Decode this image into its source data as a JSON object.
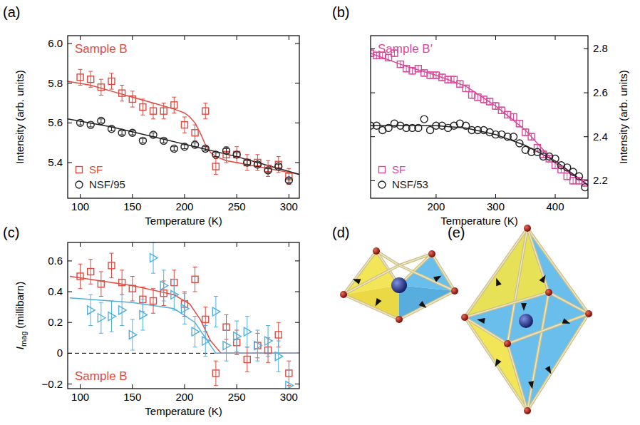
{
  "chart_data": [
    {
      "type": "scatter",
      "label": "(a)",
      "annotations": [
        {
          "text": "Sample B",
          "color": "#e0493f"
        }
      ],
      "x_label": "Temperature (K)",
      "y_label": "Intensity (arb. units)",
      "xlim": [
        88,
        310
      ],
      "ylim": [
        5.22,
        6.04
      ],
      "xticks": [
        100,
        150,
        200,
        250,
        300
      ],
      "yticks": [
        5.4,
        5.6,
        5.8,
        {
          "value": 6,
          "label": "6.0"
        }
      ],
      "legend": "lower left",
      "series": [
        {
          "name": "SF",
          "type": "scatter",
          "marker": "square",
          "color": "#e0493f",
          "x": [
            100,
            110,
            120,
            130,
            140,
            150,
            160,
            170,
            180,
            190,
            200,
            210,
            220,
            230,
            240,
            250,
            260,
            270,
            280,
            290,
            300
          ],
          "values": [
            5.83,
            5.82,
            5.78,
            5.81,
            5.75,
            5.72,
            5.68,
            5.66,
            5.66,
            5.69,
            5.59,
            5.55,
            5.66,
            5.38,
            5.44,
            5.44,
            5.4,
            5.4,
            5.37,
            5.39,
            5.33
          ],
          "errors": [
            0.04,
            0.04,
            0.04,
            0.04,
            0.04,
            0.04,
            0.04,
            0.04,
            0.04,
            0.04,
            0.04,
            0.04,
            0.04,
            0.04,
            0.04,
            0.04,
            0.04,
            0.04,
            0.04,
            0.04,
            0.04
          ]
        },
        {
          "name": "NSF/95",
          "type": "scatter",
          "marker": "circle",
          "color": "#222222",
          "x": [
            100,
            110,
            120,
            130,
            140,
            150,
            160,
            170,
            180,
            190,
            200,
            210,
            220,
            230,
            240,
            250,
            260,
            270,
            280,
            290,
            300
          ],
          "values": [
            5.6,
            5.59,
            5.61,
            5.57,
            5.55,
            5.55,
            5.51,
            5.54,
            5.51,
            5.47,
            5.48,
            5.49,
            5.47,
            5.44,
            5.46,
            5.44,
            5.4,
            5.39,
            5.36,
            5.38,
            5.31
          ],
          "errors": [
            0.01,
            0.01,
            0.01,
            0.01,
            0.01,
            0.01,
            0.01,
            0.01,
            0.01,
            0.01,
            0.01,
            0.01,
            0.01,
            0.01,
            0.01,
            0.01,
            0.01,
            0.01,
            0.01,
            0.01,
            0.01
          ]
        },
        {
          "type": "line",
          "color": "#e0493f",
          "x": [
            88,
            110,
            130,
            150,
            170,
            190,
            200,
            205,
            210,
            215,
            220,
            225,
            230,
            240,
            260,
            280,
            300,
            310
          ],
          "values": [
            5.81,
            5.79,
            5.76,
            5.73,
            5.7,
            5.67,
            5.65,
            5.63,
            5.6,
            5.55,
            5.49,
            5.45,
            5.43,
            5.41,
            5.39,
            5.37,
            5.35,
            5.34
          ]
        },
        {
          "type": "line",
          "color": "#222222",
          "x": [
            88,
            130,
            170,
            210,
            250,
            290,
            310
          ],
          "values": [
            5.62,
            5.58,
            5.53,
            5.48,
            5.43,
            5.37,
            5.34
          ]
        }
      ]
    },
    {
      "type": "scatter",
      "label": "(b)",
      "annotations": [
        {
          "text": "Sample B′",
          "color": "#d9489b"
        }
      ],
      "x_label": "Temperature (K)",
      "y_label": "Intensity (arb. units)",
      "xlim": [
        90,
        455
      ],
      "y2lim": [
        2.12,
        2.86
      ],
      "xticks": [
        200,
        300,
        400
      ],
      "y2ticks": [
        2.2,
        2.4,
        2.6,
        2.8
      ],
      "legend": "lower left",
      "series": [
        {
          "name": "SF",
          "type": "scatter",
          "marker": "square",
          "color": "#d9489b",
          "axis": "y2",
          "x": [
            90,
            100,
            110,
            120,
            130,
            140,
            150,
            160,
            170,
            180,
            190,
            200,
            210,
            220,
            230,
            240,
            250,
            260,
            270,
            280,
            290,
            300,
            310,
            320,
            330,
            340,
            350,
            360,
            370,
            380,
            390,
            400,
            410,
            420,
            430,
            440,
            450
          ],
          "values": [
            2.78,
            2.77,
            2.77,
            2.76,
            2.78,
            2.73,
            2.71,
            2.7,
            2.71,
            2.69,
            2.68,
            2.68,
            2.67,
            2.66,
            2.66,
            2.64,
            2.62,
            2.59,
            2.58,
            2.57,
            2.56,
            2.54,
            2.52,
            2.5,
            2.49,
            2.46,
            2.42,
            2.4,
            2.35,
            2.32,
            2.3,
            2.27,
            2.25,
            2.22,
            2.2,
            2.2,
            2.19
          ],
          "errors": [
            0.015,
            0.015,
            0.015,
            0.015,
            0.015,
            0.015,
            0.015,
            0.015,
            0.015,
            0.015,
            0.015,
            0.015,
            0.015,
            0.015,
            0.015,
            0.015,
            0.015,
            0.015,
            0.015,
            0.015,
            0.015,
            0.015,
            0.015,
            0.015,
            0.015,
            0.015,
            0.015,
            0.015,
            0.015,
            0.015,
            0.015,
            0.015,
            0.015,
            0.015,
            0.015,
            0.015,
            0.015
          ]
        },
        {
          "name": "NSF/53",
          "type": "scatter",
          "marker": "circle",
          "color": "#222222",
          "axis": "y2",
          "x": [
            90,
            100,
            110,
            120,
            130,
            140,
            150,
            160,
            170,
            180,
            190,
            200,
            210,
            220,
            230,
            240,
            250,
            260,
            270,
            280,
            290,
            300,
            310,
            320,
            330,
            340,
            350,
            360,
            370,
            380,
            390,
            400,
            410,
            420,
            430,
            440,
            450
          ],
          "values": [
            2.45,
            2.45,
            2.43,
            2.44,
            2.46,
            2.45,
            2.44,
            2.44,
            2.44,
            2.48,
            2.43,
            2.45,
            2.45,
            2.44,
            2.45,
            2.46,
            2.45,
            2.43,
            2.43,
            2.43,
            2.42,
            2.41,
            2.41,
            2.4,
            2.4,
            2.37,
            2.34,
            2.33,
            2.33,
            2.31,
            2.31,
            2.3,
            2.27,
            2.26,
            2.24,
            2.22,
            2.17
          ]
        },
        {
          "type": "line",
          "color": "#d9489b",
          "axis": "y2",
          "x": [
            90,
            150,
            200,
            250,
            300,
            350,
            400,
            455
          ],
          "values": [
            2.78,
            2.72,
            2.68,
            2.63,
            2.54,
            2.43,
            2.28,
            2.18
          ]
        },
        {
          "type": "line",
          "color": "#222222",
          "axis": "y2",
          "x": [
            90,
            200,
            250,
            300,
            350,
            400,
            455
          ],
          "values": [
            2.45,
            2.45,
            2.44,
            2.41,
            2.36,
            2.29,
            2.18
          ]
        }
      ]
    },
    {
      "type": "scatter",
      "label": "(c)",
      "annotations": [
        {
          "text": "Sample B",
          "color": "#e0493f"
        }
      ],
      "x_label": "Temperature (K)",
      "y_label": {
        "main": "I",
        "sub": "mag",
        "unit": "(millibarn)"
      },
      "xlim": [
        88,
        310
      ],
      "ylim": [
        -0.23,
        0.72
      ],
      "xticks": [
        100,
        150,
        200,
        250,
        300
      ],
      "yticks": [
        {
          "value": -0.2,
          "label": "−0.2"
        },
        0,
        0.2,
        0.4,
        0.6
      ],
      "reference_line": {
        "value": 0,
        "line_style": "dashed"
      },
      "series": [
        {
          "type": "scatter",
          "marker": "square",
          "color": "#e0493f",
          "x": [
            100,
            110,
            120,
            130,
            140,
            150,
            160,
            170,
            180,
            190,
            200,
            210,
            220,
            230,
            240,
            250,
            260,
            270,
            280,
            290,
            300
          ],
          "values": [
            0.5,
            0.53,
            0.45,
            0.57,
            0.46,
            0.42,
            0.35,
            0.34,
            0.39,
            0.46,
            0.32,
            0.48,
            0.22,
            -0.13,
            0.17,
            0.07,
            -0.04,
            0.05,
            0.02,
            0.12,
            -0.13
          ],
          "errors": [
            0.08,
            0.08,
            0.08,
            0.08,
            0.08,
            0.08,
            0.08,
            0.08,
            0.08,
            0.08,
            0.08,
            0.08,
            0.08,
            0.08,
            0.08,
            0.08,
            0.08,
            0.08,
            0.08,
            0.08,
            0.08
          ]
        },
        {
          "type": "scatter",
          "marker": "triangle",
          "color": "#4fb0e0",
          "x": [
            110,
            120,
            130,
            140,
            150,
            160,
            170,
            180,
            190,
            200,
            210,
            220,
            230,
            240,
            250,
            260,
            270,
            280,
            290,
            300
          ],
          "values": [
            0.28,
            0.23,
            0.24,
            0.28,
            0.12,
            0.25,
            0.62,
            0.44,
            0.38,
            0.29,
            0.14,
            0.08,
            0.27,
            0.05,
            0.11,
            0.14,
            0.05,
            0.08,
            -0.02,
            -0.21
          ],
          "errors": [
            0.1,
            0.1,
            0.1,
            0.1,
            0.1,
            0.1,
            0.1,
            0.1,
            0.1,
            0.1,
            0.1,
            0.1,
            0.1,
            0.1,
            0.1,
            0.1,
            0.1,
            0.1,
            0.1,
            0.1
          ]
        },
        {
          "type": "line",
          "color": "#e0493f",
          "x": [
            90,
            150,
            190,
            205,
            215,
            225,
            235,
            310
          ],
          "values": [
            0.5,
            0.44,
            0.38,
            0.32,
            0.22,
            0.08,
            0,
            0
          ]
        },
        {
          "type": "line",
          "color": "#4fb0e0",
          "x": [
            90,
            150,
            190,
            210,
            220,
            230,
            310
          ],
          "values": [
            0.36,
            0.33,
            0.29,
            0.2,
            0.1,
            0,
            0
          ]
        }
      ]
    }
  ],
  "diagrams": [
    {
      "label": "(d)"
    },
    {
      "label": "(e)"
    }
  ]
}
